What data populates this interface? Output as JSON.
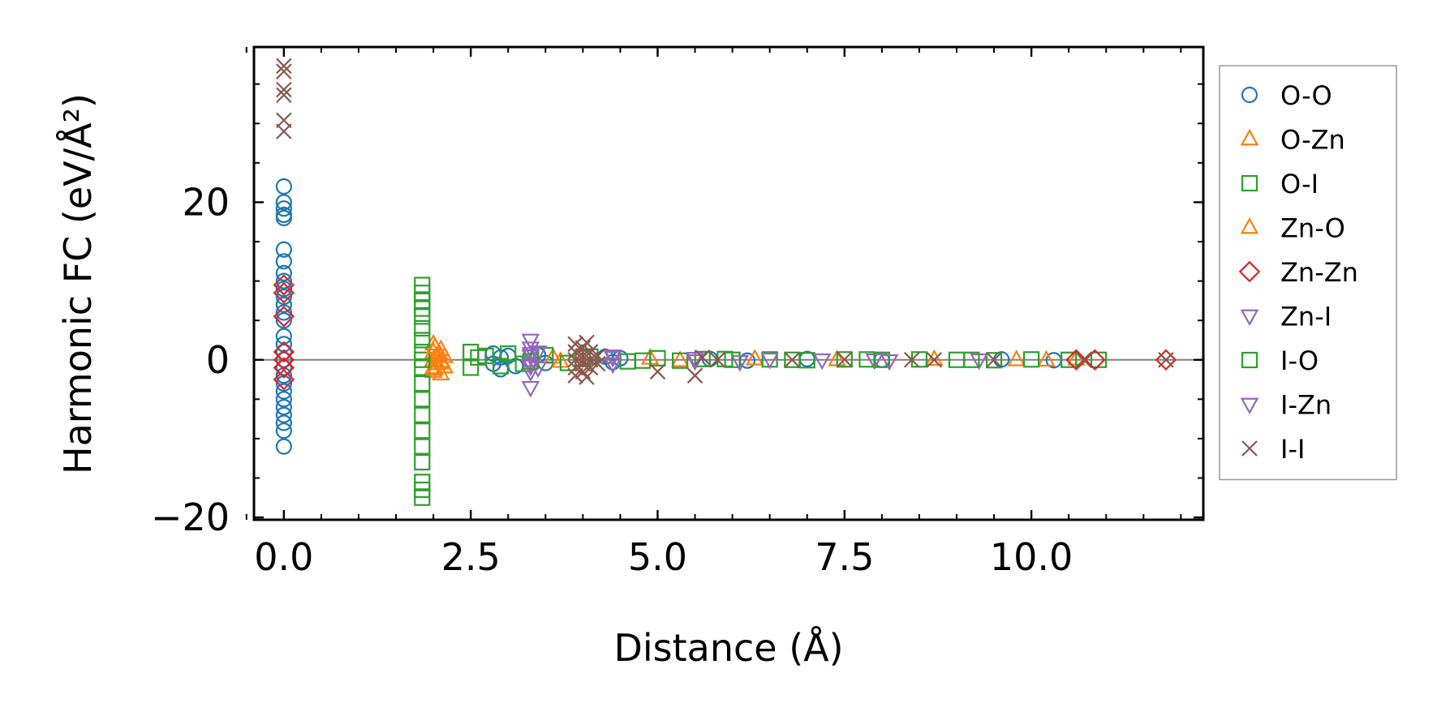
{
  "chart_data": {
    "type": "scatter",
    "xlabel": "Distance (Å)",
    "ylabel": "Harmonic FC (eV/Å²)",
    "xlim": [
      -0.4,
      12.3
    ],
    "ylim": [
      -20.3,
      39.7
    ],
    "x_ticks": [
      {
        "value": 0.0,
        "label": "0.0"
      },
      {
        "value": 2.5,
        "label": "2.5"
      },
      {
        "value": 5.0,
        "label": "5.0"
      },
      {
        "value": 7.5,
        "label": "7.5"
      },
      {
        "value": 10.0,
        "label": "10.0"
      }
    ],
    "y_ticks": [
      {
        "value": -20,
        "label": "−20"
      },
      {
        "value": 0,
        "label": "0"
      },
      {
        "value": 20,
        "label": "20"
      }
    ],
    "zero_line": true,
    "legend_position": "outside-right",
    "series": [
      {
        "name": "O-O",
        "marker": "circle",
        "color": "#1f77b4",
        "points": [
          [
            0,
            22
          ],
          [
            0,
            20
          ],
          [
            0,
            19.2
          ],
          [
            0,
            18.4
          ],
          [
            0,
            18
          ],
          [
            0,
            14
          ],
          [
            0,
            12.5
          ],
          [
            0,
            11
          ],
          [
            0,
            10
          ],
          [
            0,
            9
          ],
          [
            0,
            8
          ],
          [
            0,
            7
          ],
          [
            0,
            6
          ],
          [
            0,
            5
          ],
          [
            0,
            3
          ],
          [
            0,
            2
          ],
          [
            0,
            1
          ],
          [
            0,
            0
          ],
          [
            0,
            -1
          ],
          [
            0,
            -2
          ],
          [
            0,
            -3
          ],
          [
            0,
            -4
          ],
          [
            0,
            -5
          ],
          [
            0,
            -6
          ],
          [
            0,
            -7
          ],
          [
            0,
            -8
          ],
          [
            0,
            -9
          ],
          [
            0,
            -11
          ],
          [
            2.8,
            0.8
          ],
          [
            2.8,
            -0.5
          ],
          [
            2.9,
            0.3
          ],
          [
            2.9,
            -1.2
          ],
          [
            3.0,
            0.5
          ],
          [
            3.1,
            -0.8
          ],
          [
            3.4,
            0.6
          ],
          [
            3.5,
            -0.4
          ],
          [
            4.3,
            0.4
          ],
          [
            4.4,
            -0.3
          ],
          [
            4.5,
            0.2
          ],
          [
            5.7,
            0.1
          ],
          [
            6.2,
            -0.1
          ],
          [
            7.0,
            0.1
          ],
          [
            8.0,
            0
          ],
          [
            9.6,
            0.05
          ],
          [
            10.3,
            -0.05
          ]
        ]
      },
      {
        "name": "O-Zn",
        "marker": "triangle-up",
        "color": "#ff7f0e",
        "points": [
          [
            2.0,
            2
          ],
          [
            2.0,
            1
          ],
          [
            2.0,
            0
          ],
          [
            2.0,
            -1
          ],
          [
            2.0,
            -1.5
          ],
          [
            2.05,
            0.5
          ],
          [
            2.05,
            -0.5
          ],
          [
            2.1,
            1.3
          ],
          [
            2.1,
            -1.8
          ],
          [
            2.1,
            -0.2
          ],
          [
            2.15,
            0.4
          ],
          [
            2.15,
            -0.9
          ],
          [
            3.6,
            0.3
          ],
          [
            3.7,
            -0.2
          ],
          [
            4.9,
            0.2
          ],
          [
            5.3,
            -0.1
          ],
          [
            6.3,
            0.1
          ],
          [
            7.4,
            0
          ],
          [
            8.7,
            0.05
          ],
          [
            9.8,
            0
          ],
          [
            10.2,
            -0.05
          ],
          [
            10.6,
            0.1
          ]
        ]
      },
      {
        "name": "O-I",
        "marker": "square",
        "color": "#2ca02c",
        "points": [
          [
            1.85,
            9.5
          ],
          [
            1.85,
            8.5
          ],
          [
            1.85,
            7.5
          ],
          [
            1.85,
            6.5
          ],
          [
            1.85,
            5.5
          ],
          [
            1.85,
            4
          ],
          [
            1.85,
            2.5
          ],
          [
            1.85,
            1
          ],
          [
            1.85,
            0
          ],
          [
            1.85,
            -1
          ],
          [
            1.85,
            -3
          ],
          [
            1.85,
            -5
          ],
          [
            1.85,
            -7
          ],
          [
            1.85,
            -9
          ],
          [
            1.85,
            -11
          ],
          [
            1.85,
            -13
          ],
          [
            1.85,
            -15.5
          ],
          [
            1.85,
            -16.5
          ],
          [
            1.85,
            -17.5
          ],
          [
            2.5,
            1
          ],
          [
            2.5,
            -1
          ],
          [
            2.7,
            0.5
          ],
          [
            2.9,
            -0.8
          ],
          [
            3.0,
            0.8
          ],
          [
            3.2,
            -0.5
          ],
          [
            3.5,
            0.6
          ],
          [
            3.8,
            -0.4
          ],
          [
            4.1,
            0.4
          ],
          [
            4.6,
            -0.2
          ],
          [
            5.0,
            0.2
          ],
          [
            5.3,
            -0.1
          ],
          [
            5.6,
            0.1
          ],
          [
            6.0,
            0
          ],
          [
            6.5,
            0.05
          ],
          [
            7.0,
            -0.05
          ],
          [
            7.5,
            0.05
          ],
          [
            8.0,
            0
          ],
          [
            8.5,
            0.05
          ],
          [
            9.0,
            0
          ],
          [
            9.5,
            -0.05
          ],
          [
            10.0,
            0.05
          ],
          [
            10.5,
            0
          ],
          [
            10.9,
            0
          ]
        ]
      },
      {
        "name": "Zn-O",
        "marker": "triangle-up",
        "color": "#ff7f0e",
        "points": [
          [
            2.02,
            1.6
          ],
          [
            2.02,
            -1.2
          ],
          [
            2.08,
            0.8
          ],
          [
            2.12,
            -0.4
          ]
        ]
      },
      {
        "name": "Zn-Zn",
        "marker": "diamond",
        "color": "#d62728",
        "points": [
          [
            0,
            9.5
          ],
          [
            0,
            8.5
          ],
          [
            0,
            5.5
          ],
          [
            0,
            1
          ],
          [
            0,
            0
          ],
          [
            0,
            -1
          ],
          [
            0,
            -2.5
          ],
          [
            10.6,
            0
          ],
          [
            10.85,
            0
          ],
          [
            11.8,
            0
          ]
        ]
      },
      {
        "name": "Zn-I",
        "marker": "triangle-down",
        "color": "#9467bd",
        "points": [
          [
            3.3,
            2.5
          ],
          [
            3.3,
            1.5
          ],
          [
            3.3,
            0.5
          ],
          [
            3.3,
            -0.5
          ],
          [
            3.3,
            -1.5
          ],
          [
            3.3,
            -3.5
          ],
          [
            3.4,
            1.0
          ],
          [
            3.4,
            -1.0
          ],
          [
            4.4,
            0.5
          ],
          [
            4.4,
            -0.5
          ],
          [
            5.5,
            0.2
          ],
          [
            6.1,
            -0.2
          ],
          [
            6.5,
            0.1
          ],
          [
            7.9,
            0
          ],
          [
            8.1,
            -0.1
          ],
          [
            9.3,
            0
          ]
        ]
      },
      {
        "name": "I-O",
        "marker": "square",
        "color": "#2ca02c",
        "points": [
          [
            2.6,
            0.3
          ],
          [
            3.3,
            -0.2
          ],
          [
            4.0,
            0.2
          ],
          [
            4.8,
            -0.1
          ],
          [
            5.9,
            0.1
          ],
          [
            6.8,
            0
          ],
          [
            7.8,
            0.05
          ],
          [
            9.2,
            0
          ]
        ]
      },
      {
        "name": "I-Zn",
        "marker": "triangle-down",
        "color": "#9467bd",
        "points": [
          [
            3.3,
            0.8
          ],
          [
            3.3,
            -0.8
          ],
          [
            4.4,
            0.3
          ],
          [
            5.5,
            -0.1
          ],
          [
            7.2,
            0
          ]
        ]
      },
      {
        "name": "I-I",
        "marker": "x",
        "color": "#8c564b",
        "points": [
          [
            0,
            37.3
          ],
          [
            0,
            36.6
          ],
          [
            0,
            34.3
          ],
          [
            0,
            33.6
          ],
          [
            0,
            30.4
          ],
          [
            0,
            29.0
          ],
          [
            3.9,
            2
          ],
          [
            3.9,
            1
          ],
          [
            3.9,
            0
          ],
          [
            3.9,
            -1
          ],
          [
            3.9,
            -2
          ],
          [
            4.0,
            1.5
          ],
          [
            4.0,
            0.5
          ],
          [
            4.0,
            -0.5
          ],
          [
            4.0,
            -1.5
          ],
          [
            4.05,
            2.2
          ],
          [
            4.05,
            -2.2
          ],
          [
            4.1,
            1
          ],
          [
            4.1,
            0
          ],
          [
            4.1,
            -1
          ],
          [
            4.2,
            0.5
          ],
          [
            4.2,
            -0.5
          ],
          [
            5.0,
            -1.5
          ],
          [
            5.5,
            -2.0
          ],
          [
            5.6,
            0.3
          ],
          [
            5.8,
            0
          ],
          [
            6.8,
            0
          ],
          [
            7.5,
            0.05
          ],
          [
            8.4,
            0
          ],
          [
            8.7,
            0
          ],
          [
            9.5,
            0
          ],
          [
            10.7,
            0
          ],
          [
            11.8,
            0
          ]
        ]
      }
    ]
  }
}
